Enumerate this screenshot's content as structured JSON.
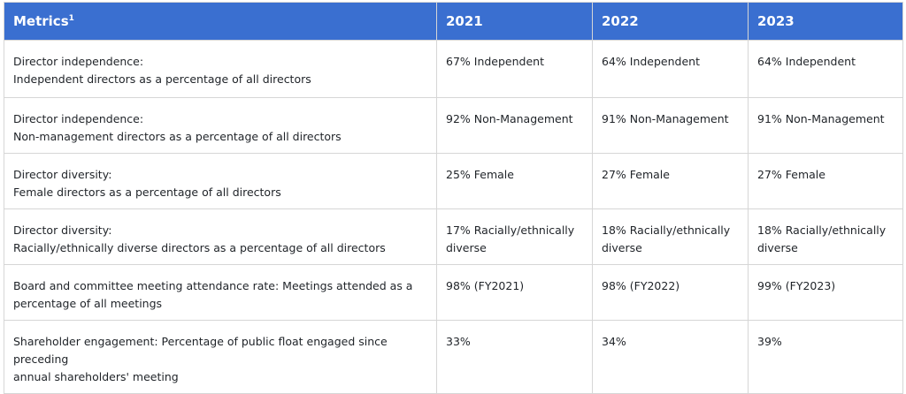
{
  "table": {
    "headers": {
      "metrics": "Metrics",
      "metrics_footnote": "1",
      "y2021": "2021",
      "y2022": "2022",
      "y2023": "2023"
    },
    "rows": [
      {
        "label_line1": "Director independence:",
        "label_line2": "Independent directors as a percentage of all directors",
        "v2021": "67% Independent",
        "v2022": "64% Independent",
        "v2023": "64% Independent"
      },
      {
        "label_line1": "Director independence:",
        "label_line2": "Non-management directors as a percentage of all directors",
        "v2021": "92% Non-Management",
        "v2022": "91% Non-Management",
        "v2023": "91% Non-Management"
      },
      {
        "label_line1": "Director diversity:",
        "label_line2": "Female directors as a percentage of all directors",
        "v2021": "25% Female",
        "v2022": "27% Female",
        "v2023": "27% Female"
      },
      {
        "label_line1": "Director diversity:",
        "label_line2": "Racially/ethnically diverse directors as a percentage of all directors",
        "v2021": "17% Racially/ethnically diverse",
        "v2022": "18% Racially/ethnically diverse",
        "v2023": "18% Racially/ethnically diverse"
      },
      {
        "label_line1": "Board and committee meeting attendance rate: Meetings attended as a",
        "label_line2": "percentage of all meetings",
        "v2021": "98% (FY2021)",
        "v2022": "98% (FY2022)",
        "v2023": "99% (FY2023)"
      },
      {
        "label_line1": "Shareholder engagement: Percentage of public float engaged since preceding",
        "label_line2": "annual shareholders' meeting",
        "v2021": "33%",
        "v2022": "34%",
        "v2023": "39%"
      }
    ]
  },
  "colors": {
    "header_bg": "#3a6fd0",
    "header_text": "#ffffff",
    "border": "#d6d6d6",
    "body_text": "#1f2328"
  }
}
